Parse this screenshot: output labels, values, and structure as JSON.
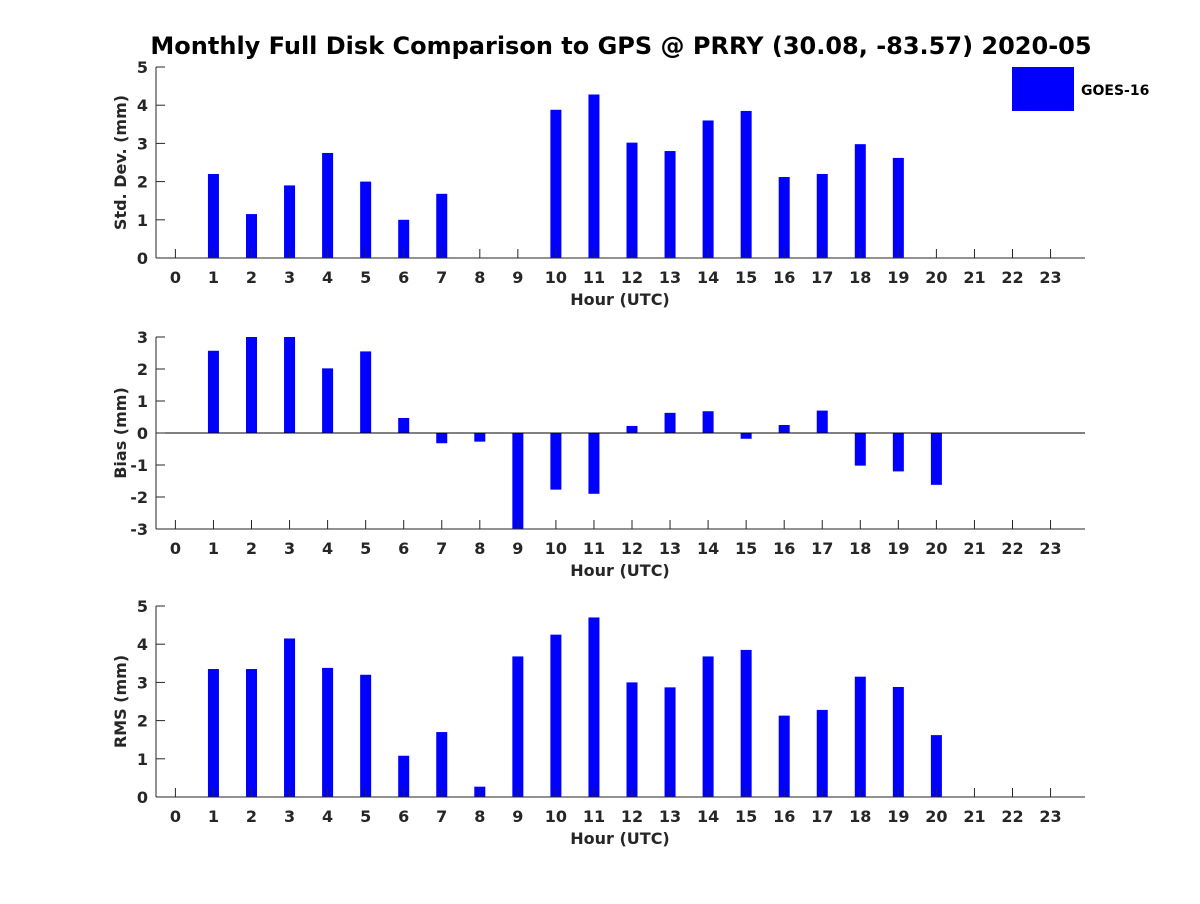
{
  "chart_data": {
    "title": "Monthly Full Disk Comparison to GPS @ PRRY (30.08, -83.57) 2020-05",
    "legend": {
      "label": "GOES-16",
      "placement": "top-right",
      "color": "#0000ff"
    },
    "bar_color": "#0000ff",
    "panels": [
      {
        "type": "bar",
        "xlabel": "Hour (UTC)",
        "ylabel": "Std. Dev. (mm)",
        "ylim": [
          0,
          5
        ],
        "yticks": [
          "0",
          "1",
          "2",
          "3",
          "4",
          "5"
        ],
        "categories": [
          "0",
          "1",
          "2",
          "3",
          "4",
          "5",
          "6",
          "7",
          "8",
          "9",
          "10",
          "11",
          "12",
          "13",
          "14",
          "15",
          "16",
          "17",
          "18",
          "19",
          "20",
          "21",
          "22",
          "23"
        ],
        "values": [
          null,
          2.2,
          1.15,
          1.9,
          2.75,
          2.0,
          1.0,
          1.68,
          null,
          null,
          3.88,
          4.28,
          3.02,
          2.8,
          3.6,
          3.85,
          2.12,
          2.2,
          2.98,
          2.62,
          null,
          null,
          null,
          null
        ]
      },
      {
        "type": "bar",
        "xlabel": "Hour (UTC)",
        "ylabel": "Bias (mm)",
        "ylim": [
          -3,
          3
        ],
        "yticks": [
          "-3",
          "-2",
          "-1",
          "0",
          "1",
          "2",
          "3"
        ],
        "categories": [
          "0",
          "1",
          "2",
          "3",
          "4",
          "5",
          "6",
          "7",
          "8",
          "9",
          "10",
          "11",
          "12",
          "13",
          "14",
          "15",
          "16",
          "17",
          "18",
          "19",
          "20",
          "21",
          "22",
          "23"
        ],
        "values": [
          null,
          2.57,
          3.0,
          3.0,
          2.02,
          2.55,
          0.47,
          -0.32,
          -0.27,
          -3.0,
          -1.77,
          -1.9,
          0.22,
          0.63,
          0.68,
          -0.18,
          0.25,
          0.7,
          -1.02,
          -1.2,
          -1.62,
          null,
          null,
          null
        ]
      },
      {
        "type": "bar",
        "xlabel": "Hour (UTC)",
        "ylabel": "RMS (mm)",
        "ylim": [
          0,
          5
        ],
        "yticks": [
          "0",
          "1",
          "2",
          "3",
          "4",
          "5"
        ],
        "categories": [
          "0",
          "1",
          "2",
          "3",
          "4",
          "5",
          "6",
          "7",
          "8",
          "9",
          "10",
          "11",
          "12",
          "13",
          "14",
          "15",
          "16",
          "17",
          "18",
          "19",
          "20",
          "21",
          "22",
          "23"
        ],
        "values": [
          null,
          3.35,
          3.35,
          4.15,
          3.38,
          3.2,
          1.08,
          1.7,
          0.27,
          3.68,
          4.25,
          4.7,
          3.0,
          2.87,
          3.68,
          3.85,
          2.13,
          2.28,
          3.15,
          2.88,
          1.62,
          null,
          null,
          null
        ]
      }
    ]
  }
}
